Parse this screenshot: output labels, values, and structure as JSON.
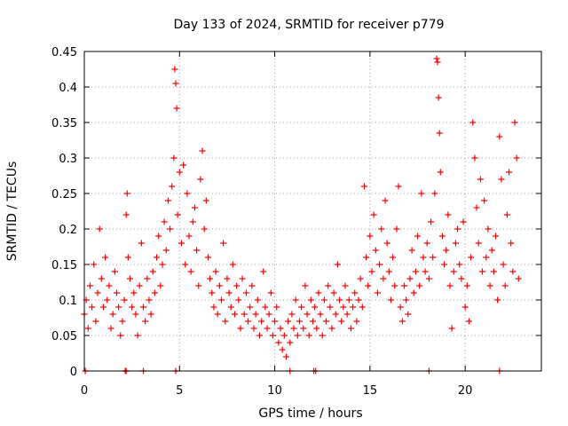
{
  "chart_data": {
    "type": "scatter",
    "title": "Day 133 of 2024, SRMTID for receiver p779",
    "xlabel": "GPS time / hours",
    "ylabel": "SRMTID / TECUs",
    "xlim": [
      0,
      24
    ],
    "ylim": [
      0,
      0.45
    ],
    "xticks": [
      0,
      5,
      10,
      15,
      20
    ],
    "xtick_labels": [
      "0",
      "5",
      "10",
      "15",
      "20"
    ],
    "yticks": [
      0,
      0.05,
      0.1,
      0.15,
      0.2,
      0.25,
      0.3,
      0.35,
      0.4,
      0.45
    ],
    "ytick_labels": [
      "0",
      "0.05",
      "0.1",
      "0.15",
      "0.2",
      "0.25",
      "0.3",
      "0.35",
      "0.4",
      "0.45"
    ],
    "grid": true,
    "marker": "+",
    "color": "#ff0000",
    "series": [
      {
        "name": "SRMTID",
        "points": [
          [
            0.0,
            0.08
          ],
          [
            0.1,
            0.1
          ],
          [
            0.2,
            0.06
          ],
          [
            0.3,
            0.12
          ],
          [
            0.4,
            0.09
          ],
          [
            0.5,
            0.15
          ],
          [
            0.6,
            0.07
          ],
          [
            0.7,
            0.11
          ],
          [
            0.8,
            0.2
          ],
          [
            0.9,
            0.13
          ],
          [
            1.0,
            0.09
          ],
          [
            1.1,
            0.16
          ],
          [
            1.2,
            0.1
          ],
          [
            1.3,
            0.12
          ],
          [
            1.4,
            0.06
          ],
          [
            1.5,
            0.08
          ],
          [
            1.6,
            0.14
          ],
          [
            1.7,
            0.11
          ],
          [
            1.8,
            0.09
          ],
          [
            1.9,
            0.05
          ],
          [
            2.0,
            0.07
          ],
          [
            2.1,
            0.1
          ],
          [
            2.2,
            0.22
          ],
          [
            2.25,
            0.25
          ],
          [
            2.3,
            0.16
          ],
          [
            2.4,
            0.13
          ],
          [
            2.5,
            0.09
          ],
          [
            2.6,
            0.11
          ],
          [
            2.7,
            0.08
          ],
          [
            2.8,
            0.05
          ],
          [
            2.9,
            0.12
          ],
          [
            3.0,
            0.18
          ],
          [
            3.1,
            0.09
          ],
          [
            3.2,
            0.07
          ],
          [
            3.3,
            0.13
          ],
          [
            3.4,
            0.1
          ],
          [
            3.5,
            0.08
          ],
          [
            3.6,
            0.14
          ],
          [
            3.7,
            0.11
          ],
          [
            3.8,
            0.16
          ],
          [
            3.9,
            0.19
          ],
          [
            4.0,
            0.12
          ],
          [
            4.1,
            0.15
          ],
          [
            4.2,
            0.21
          ],
          [
            4.3,
            0.17
          ],
          [
            4.4,
            0.24
          ],
          [
            4.5,
            0.2
          ],
          [
            4.6,
            0.26
          ],
          [
            4.7,
            0.3
          ],
          [
            4.75,
            0.425
          ],
          [
            4.8,
            0.405
          ],
          [
            4.85,
            0.37
          ],
          [
            4.9,
            0.22
          ],
          [
            5.0,
            0.28
          ],
          [
            5.1,
            0.18
          ],
          [
            5.2,
            0.29
          ],
          [
            5.3,
            0.15
          ],
          [
            5.4,
            0.25
          ],
          [
            5.5,
            0.19
          ],
          [
            5.6,
            0.14
          ],
          [
            5.7,
            0.21
          ],
          [
            5.8,
            0.23
          ],
          [
            5.9,
            0.17
          ],
          [
            6.0,
            0.12
          ],
          [
            6.1,
            0.27
          ],
          [
            6.2,
            0.31
          ],
          [
            6.3,
            0.2
          ],
          [
            6.4,
            0.24
          ],
          [
            6.5,
            0.16
          ],
          [
            6.6,
            0.13
          ],
          [
            6.7,
            0.11
          ],
          [
            6.8,
            0.09
          ],
          [
            6.9,
            0.14
          ],
          [
            7.0,
            0.08
          ],
          [
            7.1,
            0.12
          ],
          [
            7.2,
            0.1
          ],
          [
            7.3,
            0.18
          ],
          [
            7.4,
            0.07
          ],
          [
            7.5,
            0.13
          ],
          [
            7.6,
            0.11
          ],
          [
            7.7,
            0.09
          ],
          [
            7.8,
            0.15
          ],
          [
            7.9,
            0.08
          ],
          [
            8.0,
            0.12
          ],
          [
            8.1,
            0.1
          ],
          [
            8.2,
            0.06
          ],
          [
            8.3,
            0.13
          ],
          [
            8.4,
            0.08
          ],
          [
            8.5,
            0.11
          ],
          [
            8.6,
            0.07
          ],
          [
            8.7,
            0.09
          ],
          [
            8.8,
            0.12
          ],
          [
            8.9,
            0.06
          ],
          [
            9.0,
            0.08
          ],
          [
            9.1,
            0.1
          ],
          [
            9.2,
            0.05
          ],
          [
            9.3,
            0.07
          ],
          [
            9.4,
            0.14
          ],
          [
            9.5,
            0.09
          ],
          [
            9.6,
            0.06
          ],
          [
            9.7,
            0.08
          ],
          [
            9.8,
            0.11
          ],
          [
            9.9,
            0.05
          ],
          [
            10.0,
            0.07
          ],
          [
            10.1,
            0.09
          ],
          [
            10.2,
            0.04
          ],
          [
            10.3,
            0.06
          ],
          [
            10.4,
            0.03
          ],
          [
            10.5,
            0.05
          ],
          [
            10.6,
            0.02
          ],
          [
            10.7,
            0.07
          ],
          [
            10.8,
            0.04
          ],
          [
            10.9,
            0.08
          ],
          [
            11.0,
            0.06
          ],
          [
            11.1,
            0.1
          ],
          [
            11.2,
            0.05
          ],
          [
            11.3,
            0.07
          ],
          [
            11.4,
            0.09
          ],
          [
            11.5,
            0.06
          ],
          [
            11.6,
            0.12
          ],
          [
            11.7,
            0.08
          ],
          [
            11.8,
            0.05
          ],
          [
            11.9,
            0.1
          ],
          [
            12.0,
            0.07
          ],
          [
            12.1,
            0.09
          ],
          [
            12.2,
            0.06
          ],
          [
            12.3,
            0.11
          ],
          [
            12.4,
            0.08
          ],
          [
            12.5,
            0.05
          ],
          [
            12.6,
            0.1
          ],
          [
            12.7,
            0.07
          ],
          [
            12.8,
            0.12
          ],
          [
            12.9,
            0.09
          ],
          [
            13.0,
            0.06
          ],
          [
            13.1,
            0.11
          ],
          [
            13.2,
            0.08
          ],
          [
            13.3,
            0.15
          ],
          [
            13.4,
            0.1
          ],
          [
            13.5,
            0.07
          ],
          [
            13.6,
            0.09
          ],
          [
            13.7,
            0.12
          ],
          [
            13.8,
            0.08
          ],
          [
            13.9,
            0.1
          ],
          [
            14.0,
            0.06
          ],
          [
            14.1,
            0.09
          ],
          [
            14.2,
            0.11
          ],
          [
            14.3,
            0.07
          ],
          [
            14.4,
            0.1
          ],
          [
            14.5,
            0.13
          ],
          [
            14.6,
            0.09
          ],
          [
            14.7,
            0.26
          ],
          [
            14.8,
            0.16
          ],
          [
            14.9,
            0.12
          ],
          [
            15.0,
            0.19
          ],
          [
            15.1,
            0.14
          ],
          [
            15.2,
            0.22
          ],
          [
            15.3,
            0.17
          ],
          [
            15.4,
            0.11
          ],
          [
            15.5,
            0.15
          ],
          [
            15.6,
            0.2
          ],
          [
            15.7,
            0.13
          ],
          [
            15.8,
            0.24
          ],
          [
            15.9,
            0.18
          ],
          [
            16.0,
            0.14
          ],
          [
            16.1,
            0.1
          ],
          [
            16.2,
            0.16
          ],
          [
            16.3,
            0.12
          ],
          [
            16.4,
            0.2
          ],
          [
            16.5,
            0.26
          ],
          [
            16.6,
            0.09
          ],
          [
            16.7,
            0.07
          ],
          [
            16.8,
            0.12
          ],
          [
            16.9,
            0.1
          ],
          [
            17.0,
            0.08
          ],
          [
            17.1,
            0.13
          ],
          [
            17.2,
            0.17
          ],
          [
            17.3,
            0.11
          ],
          [
            17.4,
            0.14
          ],
          [
            17.5,
            0.19
          ],
          [
            17.6,
            0.12
          ],
          [
            17.7,
            0.25
          ],
          [
            17.8,
            0.16
          ],
          [
            17.9,
            0.14
          ],
          [
            18.0,
            0.18
          ],
          [
            18.1,
            0.13
          ],
          [
            18.2,
            0.21
          ],
          [
            18.3,
            0.16
          ],
          [
            18.4,
            0.25
          ],
          [
            18.5,
            0.44
          ],
          [
            18.55,
            0.435
          ],
          [
            18.6,
            0.385
          ],
          [
            18.65,
            0.335
          ],
          [
            18.7,
            0.28
          ],
          [
            18.8,
            0.19
          ],
          [
            18.9,
            0.15
          ],
          [
            19.0,
            0.17
          ],
          [
            19.1,
            0.22
          ],
          [
            19.2,
            0.12
          ],
          [
            19.3,
            0.06
          ],
          [
            19.4,
            0.14
          ],
          [
            19.5,
            0.18
          ],
          [
            19.6,
            0.2
          ],
          [
            19.7,
            0.15
          ],
          [
            19.8,
            0.13
          ],
          [
            19.9,
            0.21
          ],
          [
            20.0,
            0.09
          ],
          [
            20.1,
            0.12
          ],
          [
            20.2,
            0.07
          ],
          [
            20.3,
            0.16
          ],
          [
            20.4,
            0.35
          ],
          [
            20.5,
            0.3
          ],
          [
            20.6,
            0.23
          ],
          [
            20.7,
            0.18
          ],
          [
            20.8,
            0.27
          ],
          [
            20.9,
            0.14
          ],
          [
            21.0,
            0.24
          ],
          [
            21.1,
            0.16
          ],
          [
            21.2,
            0.2
          ],
          [
            21.3,
            0.12
          ],
          [
            21.4,
            0.17
          ],
          [
            21.5,
            0.14
          ],
          [
            21.6,
            0.19
          ],
          [
            21.7,
            0.1
          ],
          [
            21.8,
            0.33
          ],
          [
            21.9,
            0.27
          ],
          [
            22.0,
            0.15
          ],
          [
            22.1,
            0.12
          ],
          [
            22.2,
            0.22
          ],
          [
            22.3,
            0.28
          ],
          [
            22.4,
            0.18
          ],
          [
            22.5,
            0.14
          ],
          [
            22.6,
            0.35
          ],
          [
            22.7,
            0.3
          ],
          [
            22.8,
            0.13
          ],
          [
            0.05,
            0.0
          ],
          [
            2.15,
            0.0
          ],
          [
            2.2,
            0.0
          ],
          [
            3.1,
            0.0
          ],
          [
            4.8,
            0.0
          ],
          [
            10.8,
            0.0
          ],
          [
            12.05,
            0.0
          ],
          [
            12.15,
            0.0
          ],
          [
            18.1,
            0.0
          ],
          [
            21.8,
            0.0
          ]
        ]
      }
    ]
  }
}
